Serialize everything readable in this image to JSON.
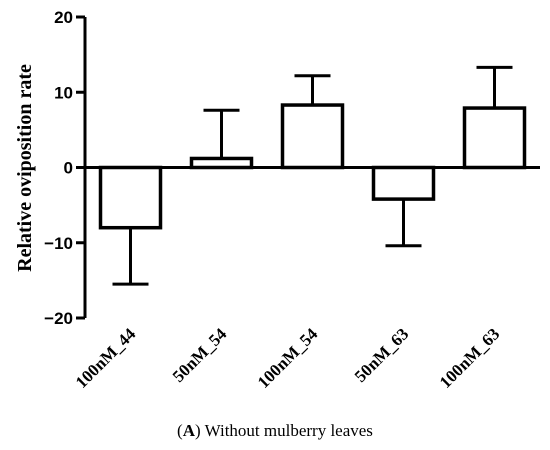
{
  "caption": {
    "prefix": "(",
    "letter": "A",
    "text": ") Without mulberry leaves"
  },
  "chart_data": {
    "type": "bar",
    "ylabel": "Relative oviposition rate",
    "xlabel": "",
    "ylim": [
      -20,
      20
    ],
    "yticks": [
      -20,
      -10,
      0,
      10,
      20
    ],
    "ytick_labels": [
      "−20",
      "−10",
      "0",
      "10",
      "20"
    ],
    "categories": [
      "100nM_44",
      "50nM_54",
      "100nM_54",
      "50nM_63",
      "100nM_63"
    ],
    "values": [
      -8.0,
      1.2,
      8.3,
      -4.2,
      7.9
    ],
    "error": [
      7.5,
      6.4,
      3.9,
      6.2,
      5.4
    ],
    "bar_fill": "#ffffff",
    "bar_stroke": "#000000"
  }
}
